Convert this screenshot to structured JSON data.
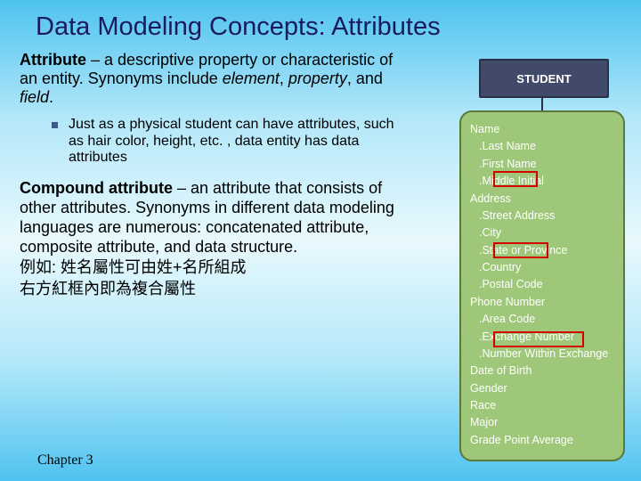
{
  "title": "Data Modeling Concepts: Attributes",
  "definition1": {
    "term": "Attribute",
    "body_before_italics": " – a descriptive property or characteristic of an entity. Synonyms include ",
    "ital1": "element",
    "sep1": ", ",
    "ital2": "property",
    "sep2": ", and ",
    "ital3": "field",
    "tail": "."
  },
  "bullet": "Just as a physical student can have attributes, such as hair color, height, etc. , data entity has data attributes",
  "definition2": {
    "term": "Compound attribute",
    "body": " – an attribute that consists of other attributes. Synonyms in different data modeling languages are numerous: concatenated attribute, composite attribute, and data structure."
  },
  "chinese1": "例如: 姓名屬性可由姓+名所組成",
  "chinese2": "右方紅框內即為複合屬性",
  "footer": "Chapter 3",
  "diagram": {
    "entity": "STUDENT",
    "entity_bg": "#424a69",
    "entity_text": "#ffffff",
    "attr_bg": "#9ec77a",
    "attr_border": "#5a7a3a",
    "attr_text": "#ffffff",
    "highlight_color": "#d40000",
    "attributes": [
      {
        "label": "Name",
        "sub": false,
        "highlighted": true
      },
      {
        "label": ".Last Name",
        "sub": true
      },
      {
        "label": ".First Name",
        "sub": true
      },
      {
        "label": ".Middle Initial",
        "sub": true
      },
      {
        "label": "Address",
        "sub": false,
        "highlighted": true
      },
      {
        "label": ".Street Address",
        "sub": true
      },
      {
        "label": ".City",
        "sub": true
      },
      {
        "label": ".State or Province",
        "sub": true
      },
      {
        "label": ".Country",
        "sub": true
      },
      {
        "label": ".Postal Code",
        "sub": true
      },
      {
        "label": "Phone Number",
        "sub": false,
        "highlighted": true
      },
      {
        "label": ".Area Code",
        "sub": true
      },
      {
        "label": ".Exchange Number",
        "sub": true
      },
      {
        "label": ".Number Within Exchange",
        "sub": true
      },
      {
        "label": "Date of Birth",
        "sub": false
      },
      {
        "label": "Gender",
        "sub": false
      },
      {
        "label": "Race",
        "sub": false
      },
      {
        "label": "Major",
        "sub": false
      },
      {
        "label": "Grade Point Average",
        "sub": false
      }
    ]
  }
}
